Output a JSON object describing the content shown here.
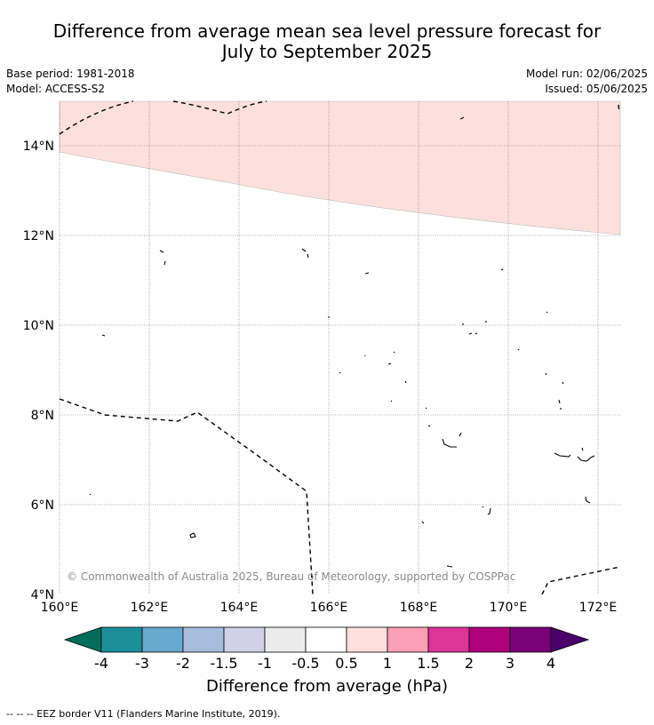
{
  "title": {
    "line1": "Difference from average mean sea level pressure forecast for",
    "line2": "July to September 2025"
  },
  "meta": {
    "base_period": "Base period: 1981-2018",
    "model": "Model: ACCESS-S2",
    "model_run": "Model run: 02/06/2025",
    "issued": "Issued: 05/06/2025"
  },
  "map": {
    "lat_ticks": [
      "14°N",
      "12°N",
      "10°N",
      "8°N",
      "6°N",
      "4°N"
    ],
    "lon_ticks": [
      "160°E",
      "162°E",
      "164°E",
      "166°E",
      "168°E",
      "170°E",
      "172°E"
    ],
    "copyright": "© Commonwealth of Australia 2025, Bureau of Meteorology, supported by COSPPac",
    "shaded_region_color": "#fde0dd"
  },
  "colorbar": {
    "title": "Difference from average (hPa)",
    "labels": [
      "-4",
      "-3",
      "-2",
      "-1.5",
      "-1",
      "-0.5",
      "0.5",
      "1",
      "1.5",
      "2",
      "3",
      "4"
    ],
    "colors": [
      "#006d5b",
      "#1c9099",
      "#67a9cf",
      "#a6bddb",
      "#d0d1e6",
      "#ececec",
      "#ffffff",
      "#fde0dd",
      "#fa9fb5",
      "#dd3497",
      "#ae017e",
      "#7a0177",
      "#49006a"
    ]
  },
  "footer": {
    "legend": "-- -- -- EEZ border V11 (Flanders Marine Institute, 2019)."
  }
}
